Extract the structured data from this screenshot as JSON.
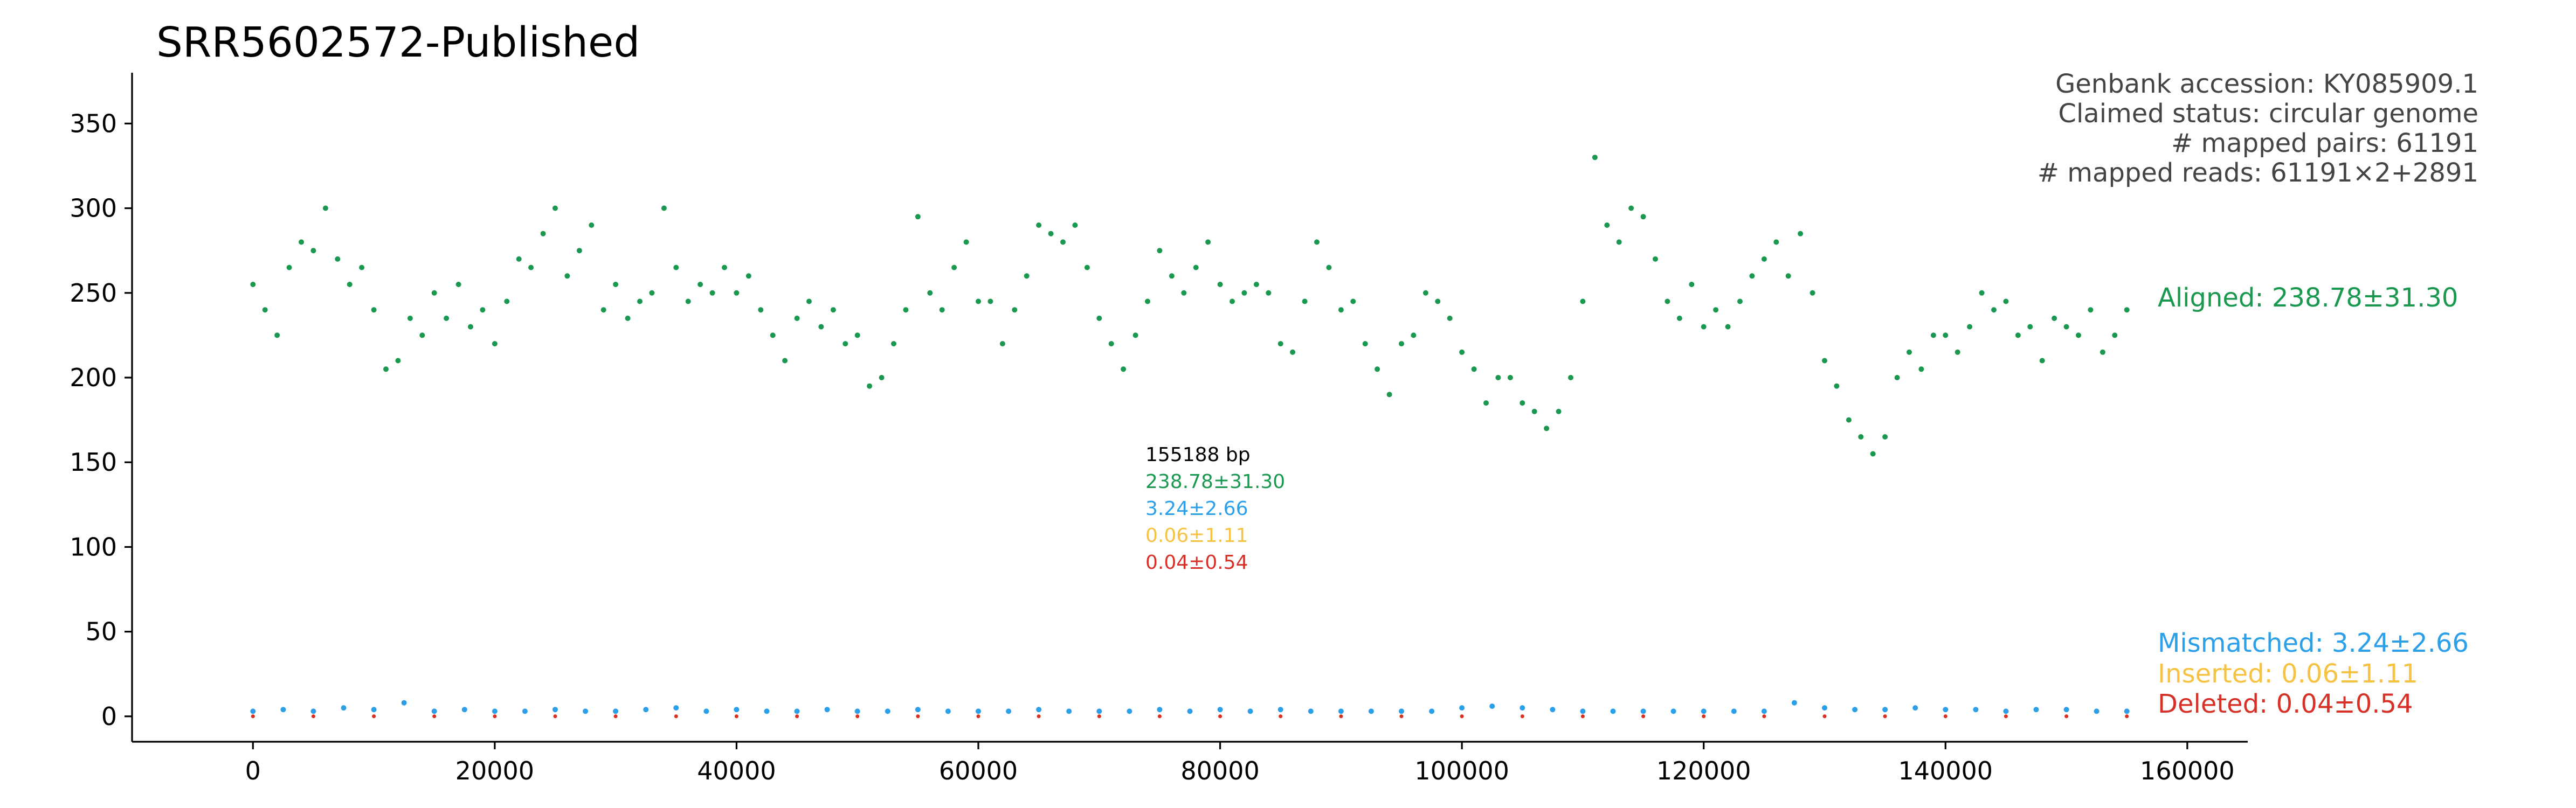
{
  "colors": {
    "aligned": "#1a9850",
    "mismatched": "#2b9fe8",
    "inserted": "#f5c242",
    "deleted": "#d73027",
    "text": "#000000",
    "info_text": "#444444"
  },
  "chart_data": {
    "type": "scatter",
    "title": "SRR5602572-Published",
    "xlabel": "",
    "ylabel": "",
    "xlim": [
      -10000,
      165000
    ],
    "ylim": [
      -15,
      380
    ],
    "x_ticks": [
      "0",
      "20000",
      "40000",
      "60000",
      "80000",
      "100000",
      "120000",
      "140000",
      "160000"
    ],
    "y_ticks": [
      "0",
      "50",
      "100",
      "150",
      "200",
      "250",
      "300",
      "350"
    ],
    "x_tick_values": [
      0,
      20000,
      40000,
      60000,
      80000,
      100000,
      120000,
      140000,
      160000
    ],
    "y_tick_values": [
      0,
      50,
      100,
      150,
      200,
      250,
      300,
      350
    ],
    "grid": false,
    "genome_length_bp": 155188,
    "info_lines": [
      "Genbank accession: KY085909.1",
      "Claimed status: circular genome",
      "# mapped pairs: 61191",
      "# mapped reads: 61191×2+2891"
    ],
    "center_stats": {
      "length": "155188 bp",
      "aligned": "238.78±31.30",
      "mismatched": "3.24±2.66",
      "inserted": "0.06±1.11",
      "deleted": "0.04±0.54"
    },
    "series_labels": {
      "aligned": "Aligned: 238.78±31.30",
      "mismatched": "Mismatched: 3.24±2.66",
      "inserted": "Inserted: 0.06±1.11",
      "deleted": "Deleted: 0.04±0.54"
    },
    "series": [
      {
        "name": "Aligned",
        "x": [
          0,
          1000,
          2000,
          3000,
          4000,
          5000,
          6000,
          7000,
          8000,
          9000,
          10000,
          11000,
          12000,
          13000,
          14000,
          15000,
          16000,
          17000,
          18000,
          19000,
          20000,
          21000,
          22000,
          23000,
          24000,
          25000,
          26000,
          27000,
          28000,
          29000,
          30000,
          31000,
          32000,
          33000,
          34000,
          35000,
          36000,
          37000,
          38000,
          39000,
          40000,
          41000,
          42000,
          43000,
          44000,
          45000,
          46000,
          47000,
          48000,
          49000,
          50000,
          51000,
          52000,
          53000,
          54000,
          55000,
          56000,
          57000,
          58000,
          59000,
          60000,
          61000,
          62000,
          63000,
          64000,
          65000,
          66000,
          67000,
          68000,
          69000,
          70000,
          71000,
          72000,
          73000,
          74000,
          75000,
          76000,
          77000,
          78000,
          79000,
          80000,
          81000,
          82000,
          83000,
          84000,
          85000,
          86000,
          87000,
          88000,
          89000,
          90000,
          91000,
          92000,
          93000,
          94000,
          95000,
          96000,
          97000,
          98000,
          99000,
          100000,
          101000,
          102000,
          103000,
          104000,
          105000,
          106000,
          107000,
          108000,
          109000,
          110000,
          111000,
          112000,
          113000,
          114000,
          115000,
          116000,
          117000,
          118000,
          119000,
          120000,
          121000,
          122000,
          123000,
          124000,
          125000,
          126000,
          127000,
          128000,
          129000,
          130000,
          131000,
          132000,
          133000,
          134000,
          135000,
          136000,
          137000,
          138000,
          139000,
          140000,
          141000,
          142000,
          143000,
          144000,
          145000,
          146000,
          147000,
          148000,
          149000,
          150000,
          151000,
          152000,
          153000,
          154000,
          155000
        ],
        "values": [
          255,
          240,
          225,
          265,
          280,
          275,
          300,
          270,
          255,
          265,
          240,
          205,
          210,
          235,
          225,
          250,
          235,
          255,
          230,
          240,
          220,
          245,
          270,
          265,
          285,
          300,
          260,
          275,
          290,
          240,
          255,
          235,
          245,
          250,
          300,
          265,
          245,
          255,
          250,
          265,
          250,
          260,
          240,
          225,
          210,
          235,
          245,
          230,
          240,
          220,
          225,
          195,
          200,
          220,
          240,
          295,
          250,
          240,
          265,
          280,
          245,
          245,
          220,
          240,
          260,
          290,
          285,
          280,
          290,
          265,
          235,
          220,
          205,
          225,
          245,
          275,
          260,
          250,
          265,
          280,
          255,
          245,
          250,
          255,
          250,
          220,
          215,
          245,
          280,
          265,
          240,
          245,
          220,
          205,
          190,
          220,
          225,
          250,
          245,
          235,
          215,
          205,
          185,
          200,
          200,
          185,
          180,
          170,
          180,
          200,
          245,
          330,
          290,
          280,
          300,
          295,
          270,
          245,
          235,
          255,
          230,
          240,
          230,
          245,
          260,
          270,
          280,
          260,
          285,
          250,
          210,
          195,
          175,
          165,
          155,
          165,
          200,
          215,
          205,
          225,
          225,
          215,
          230,
          250,
          240,
          245,
          225,
          230,
          210,
          235,
          230,
          225,
          240,
          215,
          225,
          240
        ]
      },
      {
        "name": "Mismatched",
        "x": [
          0,
          2500,
          5000,
          7500,
          10000,
          12500,
          15000,
          17500,
          20000,
          22500,
          25000,
          27500,
          30000,
          32500,
          35000,
          37500,
          40000,
          42500,
          45000,
          47500,
          50000,
          52500,
          55000,
          57500,
          60000,
          62500,
          65000,
          67500,
          70000,
          72500,
          75000,
          77500,
          80000,
          82500,
          85000,
          87500,
          90000,
          92500,
          95000,
          97500,
          100000,
          102500,
          105000,
          107500,
          110000,
          112500,
          115000,
          117500,
          120000,
          122500,
          125000,
          127500,
          130000,
          132500,
          135000,
          137500,
          140000,
          142500,
          145000,
          147500,
          150000,
          152500,
          155000
        ],
        "values": [
          3,
          4,
          3,
          5,
          4,
          8,
          3,
          4,
          3,
          3,
          4,
          3,
          3,
          4,
          5,
          3,
          4,
          3,
          3,
          4,
          3,
          3,
          4,
          3,
          3,
          3,
          4,
          3,
          3,
          3,
          4,
          3,
          4,
          3,
          4,
          3,
          3,
          3,
          3,
          3,
          5,
          6,
          5,
          4,
          3,
          3,
          3,
          3,
          3,
          3,
          3,
          8,
          5,
          4,
          4,
          5,
          4,
          4,
          3,
          4,
          4,
          3,
          3
        ]
      },
      {
        "name": "Inserted",
        "x": [
          0,
          5000,
          10000,
          15000,
          20000,
          25000,
          30000,
          35000,
          40000,
          45000,
          50000,
          55000,
          60000,
          65000,
          70000,
          75000,
          80000,
          85000,
          90000,
          95000,
          100000,
          105000,
          110000,
          115000,
          120000,
          125000,
          130000,
          135000,
          140000,
          145000,
          150000,
          155000
        ],
        "values": [
          0,
          0,
          0,
          0,
          0,
          0,
          0,
          0,
          0,
          0,
          0,
          0,
          0,
          0,
          0,
          0,
          0,
          0,
          0,
          0,
          0,
          0,
          0,
          0,
          0,
          0,
          0,
          0,
          0,
          0,
          0,
          0
        ]
      },
      {
        "name": "Deleted",
        "x": [
          0,
          5000,
          10000,
          15000,
          20000,
          25000,
          30000,
          35000,
          40000,
          45000,
          50000,
          55000,
          60000,
          65000,
          70000,
          75000,
          80000,
          85000,
          90000,
          95000,
          100000,
          105000,
          110000,
          115000,
          120000,
          125000,
          130000,
          135000,
          140000,
          145000,
          150000,
          155000
        ],
        "values": [
          0,
          0,
          0,
          0,
          0,
          0,
          0,
          0,
          0,
          0,
          0,
          0,
          0,
          0,
          0,
          0,
          0,
          0,
          0,
          0,
          0,
          0,
          0,
          0,
          0,
          0,
          0,
          0,
          0,
          0,
          0,
          0
        ]
      }
    ]
  }
}
